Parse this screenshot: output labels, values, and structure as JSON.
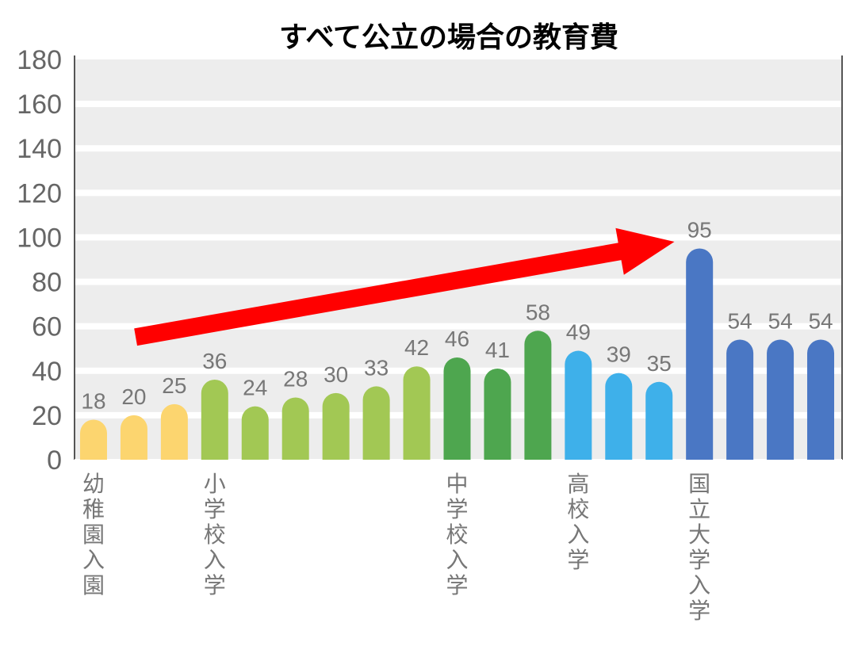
{
  "chart_data": {
    "type": "bar",
    "title": "すべて公立の場合の教育費",
    "ylim": [
      0,
      180
    ],
    "yticks": [
      0,
      20,
      40,
      60,
      80,
      100,
      120,
      140,
      160,
      180
    ],
    "values": [
      18,
      20,
      25,
      36,
      24,
      28,
      30,
      33,
      42,
      46,
      41,
      58,
      49,
      39,
      35,
      95,
      54,
      54,
      54
    ],
    "colors": [
      "#fcd56f",
      "#fcd56f",
      "#fcd56f",
      "#a2c854",
      "#a2c854",
      "#a2c854",
      "#a2c854",
      "#a2c854",
      "#a2c854",
      "#4ea64f",
      "#4ea64f",
      "#4ea64f",
      "#3eb0ea",
      "#3eb0ea",
      "#3eb0ea",
      "#4a77c4",
      "#4a77c4",
      "#4a77c4",
      "#4a77c4"
    ],
    "category_labels": [
      {
        "index": 0,
        "text": "幼稚園入園"
      },
      {
        "index": 3,
        "text": "小学校入学"
      },
      {
        "index": 9,
        "text": "中学校入学"
      },
      {
        "index": 12,
        "text": "高校入学"
      },
      {
        "index": 15,
        "text": "国立大学入学"
      }
    ],
    "grid": true,
    "annotation": {
      "type": "arrow",
      "color": "#ff0000",
      "from_index": 1.2,
      "from_value": 58,
      "to_index": 14.3,
      "to_value": 103
    }
  }
}
